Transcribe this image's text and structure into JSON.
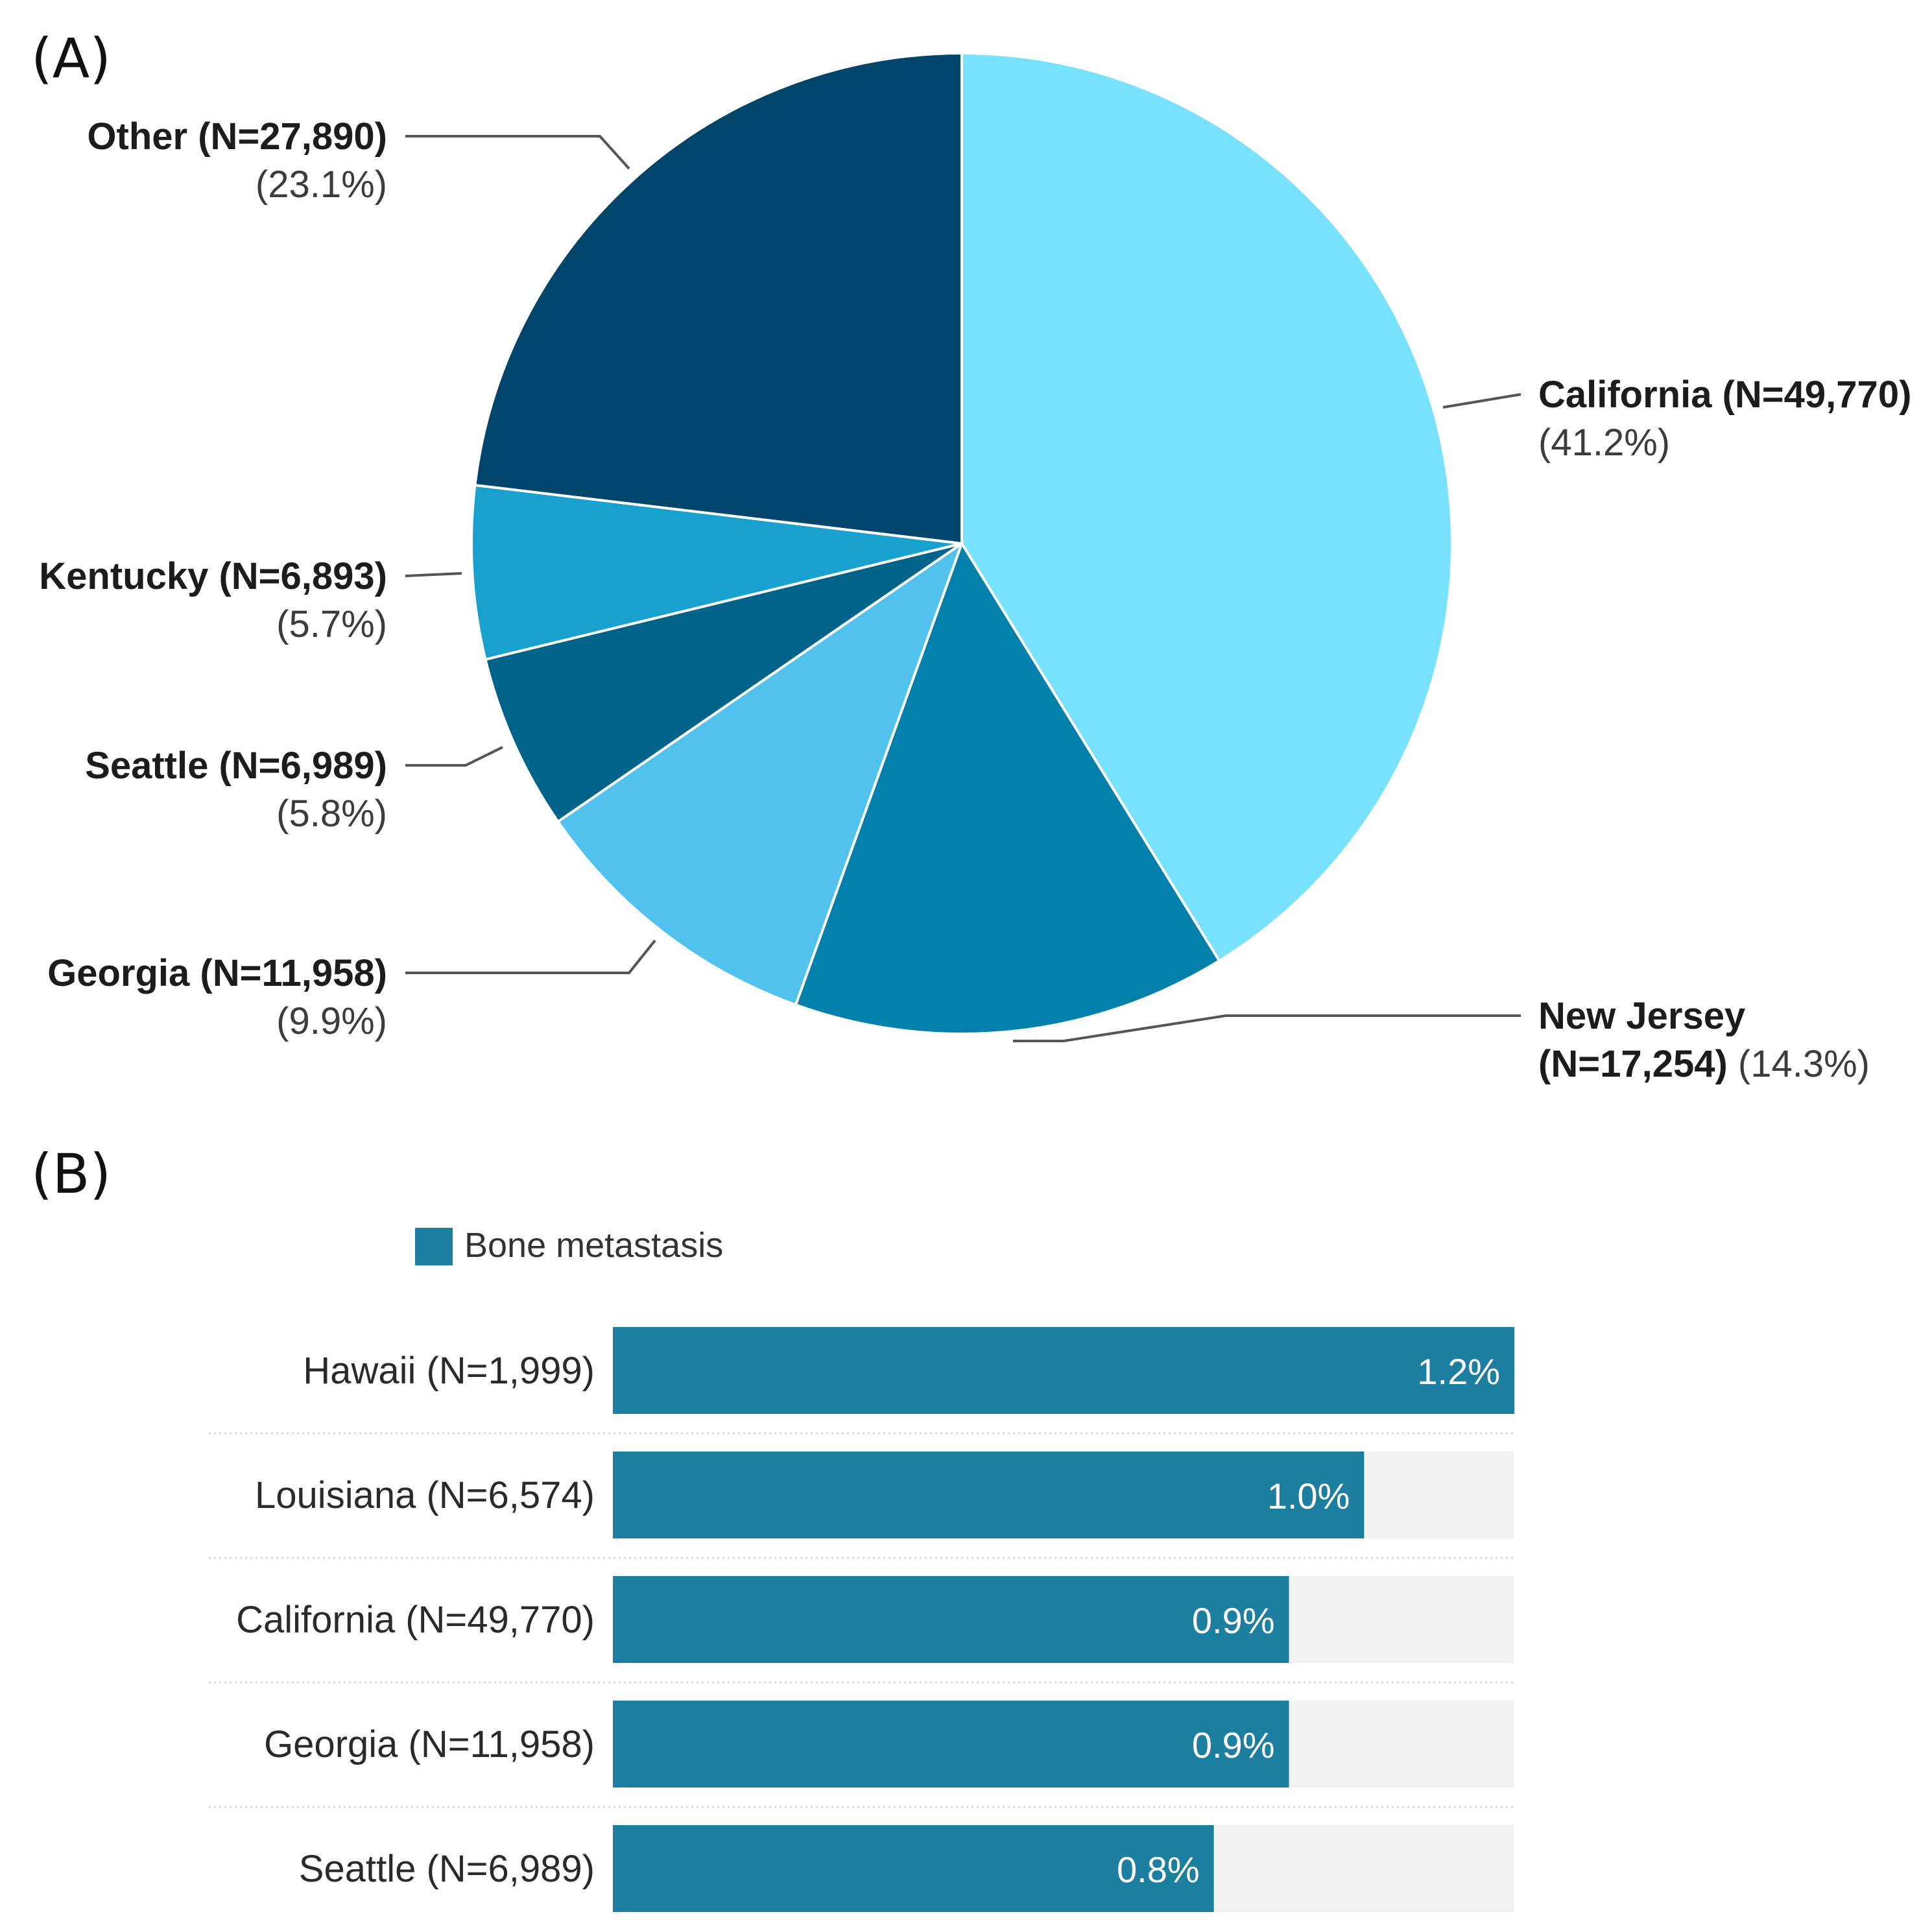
{
  "panels": {
    "a_label": "(A)",
    "b_label": "(B)"
  },
  "chart_data": [
    {
      "type": "pie",
      "panel": "(A)",
      "slices": [
        {
          "name": "California (N=49,770)",
          "pct_label": "(41.2%)",
          "value": 41.2,
          "color": "#78e1fd",
          "side": "right"
        },
        {
          "name": "New Jersey",
          "name2": "(N=17,254)",
          "pct_label": "(14.3%)",
          "value": 14.3,
          "color": "#0080ab",
          "side": "right"
        },
        {
          "name": "Georgia (N=11,958)",
          "pct_label": "(9.9%)",
          "value": 9.9,
          "color": "#51c2ee",
          "side": "left"
        },
        {
          "name": "Seattle (N=6,989)",
          "pct_label": "(5.8%)",
          "value": 5.8,
          "color": "#006389",
          "side": "left"
        },
        {
          "name": "Kentucky (N=6,893)",
          "pct_label": "(5.7%)",
          "value": 5.7,
          "color": "#18a1cf",
          "side": "left"
        },
        {
          "name": "Other (N=27,890)",
          "pct_label": "(23.1%)",
          "value": 23.1,
          "color": "#00466c",
          "side": "left"
        }
      ]
    },
    {
      "type": "bar",
      "orientation": "horizontal",
      "panel": "(B)",
      "legend": [
        {
          "name": "Bone metastasis",
          "color": "#1d7f9f"
        }
      ],
      "categories": [
        "Hawaii (N=1,999)",
        "Louisiana (N=6,574)",
        "California (N=49,770)",
        "Georgia (N=11,958)",
        "Seattle (N=6,989)"
      ],
      "values": [
        1.2,
        1.0,
        0.9,
        0.9,
        0.8
      ],
      "value_labels": [
        "1.2%",
        "1.0%",
        "0.9%",
        "0.9%",
        "0.8%"
      ],
      "xlim": [
        0,
        1.2
      ],
      "bar_color": "#1d7f9f",
      "track_color": "#f2f2f2"
    }
  ]
}
